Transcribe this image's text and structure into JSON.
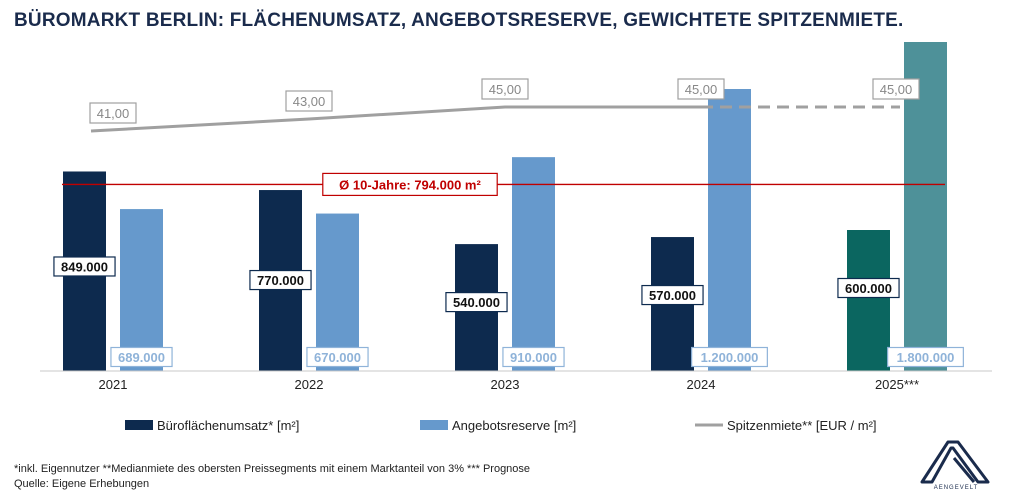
{
  "chart_data": {
    "type": "bar",
    "title": "BÜROMARKT BERLIN: FLÄCHENUMSATZ, ANGEBOTSRESERVE, GEWICHTETE SPITZENMIETE.",
    "categories": [
      "2021",
      "2022",
      "2023",
      "2024",
      "2025***"
    ],
    "series": [
      {
        "name": "Büroflächenumsatz* [m²]",
        "kind": "bar",
        "values": [
          849000,
          770000,
          540000,
          570000,
          600000
        ],
        "labels": [
          "849.000",
          "770.000",
          "540.000",
          "570.000",
          "600.000"
        ],
        "color": "#0d2a4e",
        "forecast_color": "#0b6660"
      },
      {
        "name": "Angebotsreserve [m²]",
        "kind": "bar",
        "values": [
          689000,
          670000,
          910000,
          1200000,
          1800000
        ],
        "labels": [
          "689.000",
          "670.000",
          "910.000",
          "1.200.000",
          "1.800.000"
        ],
        "color": "#6699cc",
        "forecast_color": "#4e9199"
      },
      {
        "name": "Spitzenmiete** [EUR / m²]",
        "kind": "line",
        "values": [
          41,
          43,
          45,
          45,
          45
        ],
        "labels": [
          "41,00",
          "43,00",
          "45,00",
          "45,00",
          "45,00"
        ],
        "color": "#a0a0a0",
        "forecast_dashed": true
      }
    ],
    "reference_line": {
      "label": "Ø 10-Jahre: 794.000 m²",
      "value": 794000,
      "color": "#c00000"
    },
    "bar_axis_ylim": [
      0,
      1400000
    ],
    "line_axis_ylim": [
      0,
      50
    ],
    "legend_position": "bottom",
    "grid": false
  },
  "footnotes": {
    "line1": "*inkl. Eigennutzer **Medianmiete des obersten Preissegments mit einem Marktanteil von 3% *** Prognose",
    "line2": "Quelle: Eigene Erhebungen"
  },
  "logo": {
    "text": "AENGEVELT",
    "color": "#1a2b4c"
  }
}
